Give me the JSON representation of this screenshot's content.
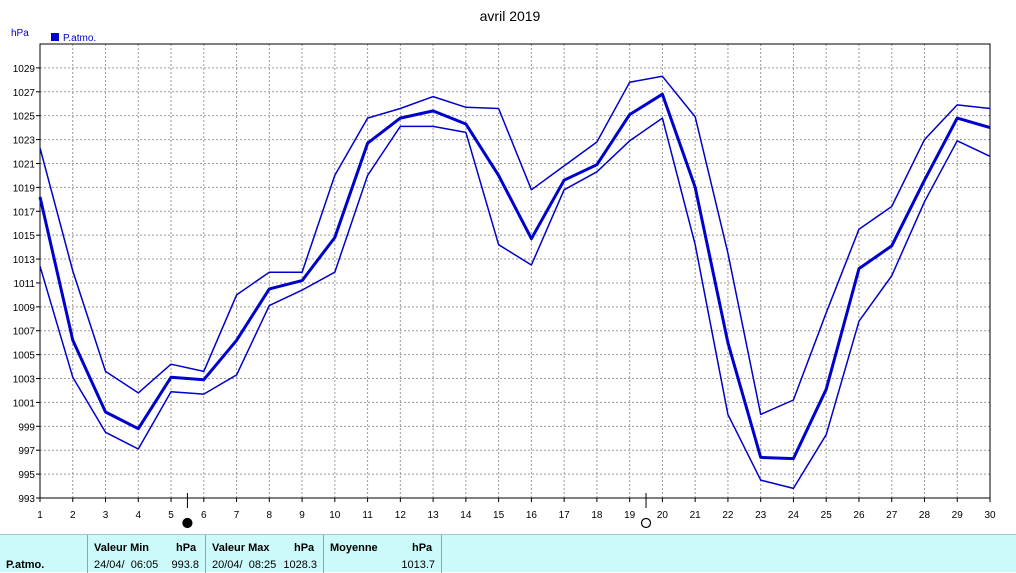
{
  "chart_data": {
    "type": "line",
    "title": "avril 2019",
    "ylabel": "hPa",
    "xlabel": "",
    "legend": {
      "label": "P.atmo.",
      "position": "top-left",
      "color": "#0000cc"
    },
    "grid": true,
    "ylim": [
      993,
      1031
    ],
    "xlim": [
      1,
      30
    ],
    "yticks": [
      993,
      995,
      997,
      999,
      1001,
      1003,
      1005,
      1007,
      1009,
      1011,
      1013,
      1015,
      1017,
      1019,
      1021,
      1023,
      1025,
      1027,
      1029
    ],
    "x": [
      1,
      2,
      3,
      4,
      5,
      6,
      7,
      8,
      9,
      10,
      11,
      12,
      13,
      14,
      15,
      16,
      17,
      18,
      19,
      20,
      21,
      22,
      23,
      24,
      25,
      26,
      27,
      28,
      29,
      30
    ],
    "series": [
      {
        "role": "max",
        "width": 1.5,
        "color": "#0000cc",
        "values": [
          1022.3,
          1012.0,
          1003.6,
          1001.8,
          1004.2,
          1003.6,
          1010.0,
          1011.9,
          1011.9,
          1020.0,
          1024.8,
          1025.6,
          1026.6,
          1025.7,
          1025.6,
          1018.8,
          1020.8,
          1022.8,
          1027.8,
          1028.3,
          1024.9,
          1013.5,
          1000.0,
          1001.2,
          1008.5,
          1015.5,
          1017.4,
          1023.0,
          1025.9,
          1025.6
        ]
      },
      {
        "role": "mean",
        "width": 3,
        "color": "#0000cc",
        "values": [
          1018.2,
          1006.2,
          1000.2,
          998.8,
          1003.1,
          1002.9,
          1006.2,
          1010.5,
          1011.2,
          1014.8,
          1022.7,
          1024.8,
          1025.4,
          1024.3,
          1020.0,
          1014.7,
          1019.6,
          1020.9,
          1025.1,
          1026.8,
          1019.0,
          1006.0,
          996.4,
          996.3,
          1002.1,
          1012.2,
          1014.1,
          1019.6,
          1024.8,
          1024.0
        ]
      },
      {
        "role": "min",
        "width": 1.5,
        "color": "#0000cc",
        "values": [
          1012.4,
          1003.1,
          998.5,
          997.1,
          1001.9,
          1001.7,
          1003.3,
          1009.1,
          1010.4,
          1011.9,
          1020.0,
          1024.1,
          1024.1,
          1023.6,
          1014.2,
          1012.5,
          1018.8,
          1020.3,
          1022.9,
          1024.8,
          1014.2,
          1000.0,
          994.5,
          993.8,
          998.3,
          1007.8,
          1011.6,
          1017.8,
          1022.9,
          1021.6
        ]
      }
    ],
    "moon_markers": [
      {
        "day": 5.5,
        "phase": "new"
      },
      {
        "day": 19.5,
        "phase": "full"
      }
    ]
  },
  "stats": {
    "series_label": "P.atmo.",
    "min": {
      "header": "Valeur Min",
      "unit": "hPa",
      "datetime": "24/04/  06:05",
      "value": "993.8"
    },
    "max": {
      "header": "Valeur Max",
      "unit": "hPa",
      "datetime": "20/04/  08:25",
      "value": "1028.3"
    },
    "avg": {
      "header": "Moyenne",
      "unit": "hPa",
      "value": "1013.7"
    }
  }
}
